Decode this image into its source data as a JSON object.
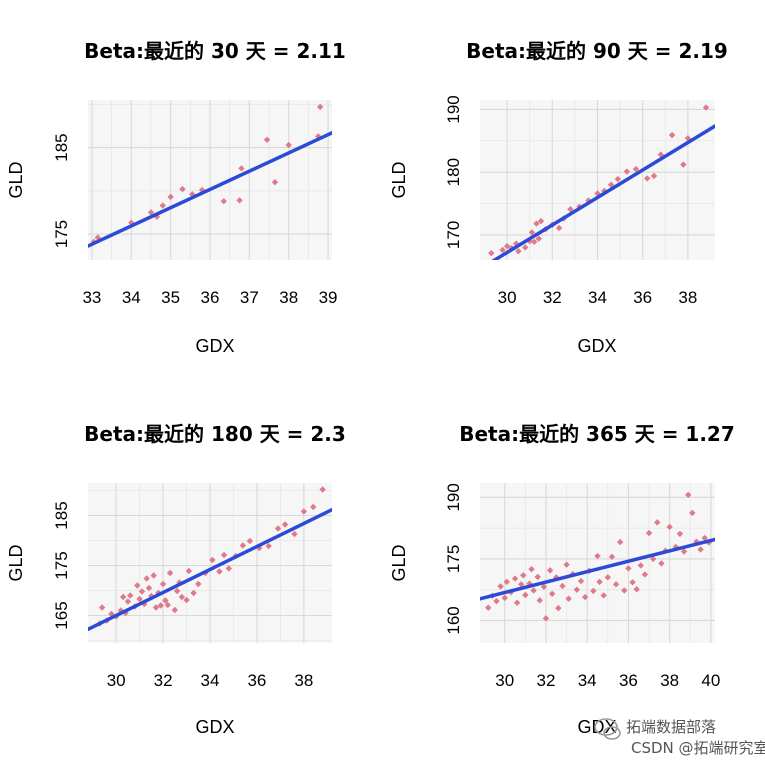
{
  "chart_data": [
    {
      "type": "scatter",
      "title": "Beta:最近的 30 天 = 2.11",
      "xlabel": "GDX",
      "ylabel": "GLD",
      "xlim": [
        32.9,
        39.1
      ],
      "ylim": [
        172.0,
        190.5
      ],
      "xticks": [
        33,
        34,
        35,
        36,
        37,
        38,
        39
      ],
      "yticks": [
        175,
        185
      ],
      "grid": true,
      "points": [
        [
          33.05,
          174.1
        ],
        [
          33.15,
          174.6
        ],
        [
          34.0,
          176.3
        ],
        [
          34.5,
          177.5
        ],
        [
          34.65,
          177.0
        ],
        [
          34.8,
          178.3
        ],
        [
          35.0,
          179.3
        ],
        [
          35.3,
          180.2
        ],
        [
          35.55,
          179.6
        ],
        [
          35.8,
          180.1
        ],
        [
          36.35,
          178.8
        ],
        [
          36.75,
          178.9
        ],
        [
          36.8,
          182.6
        ],
        [
          37.45,
          185.9
        ],
        [
          37.65,
          181.0
        ],
        [
          38.0,
          185.3
        ],
        [
          38.75,
          186.3
        ],
        [
          38.8,
          189.7
        ]
      ],
      "fit": {
        "slope": 2.11,
        "intercept": 104.2
      },
      "colors": {
        "points": "#e07a8b",
        "fit": "#2b4ad6",
        "panel": "#f5f6f5",
        "grid": "#d9d9d9"
      }
    },
    {
      "type": "scatter",
      "title": "Beta:最近的 90 天 = 2.19",
      "xlabel": "GDX",
      "ylabel": "GLD",
      "xlim": [
        28.8,
        39.2
      ],
      "ylim": [
        166.0,
        191.5
      ],
      "xticks": [
        30,
        32,
        34,
        36,
        38
      ],
      "yticks": [
        170,
        180,
        190
      ],
      "grid": true,
      "points": [
        [
          29.3,
          167.1
        ],
        [
          29.8,
          167.6
        ],
        [
          30.0,
          168.2
        ],
        [
          30.2,
          167.9
        ],
        [
          30.4,
          168.6
        ],
        [
          30.5,
          167.4
        ],
        [
          30.8,
          168.0
        ],
        [
          31.0,
          169.0
        ],
        [
          31.1,
          170.4
        ],
        [
          31.2,
          168.9
        ],
        [
          31.3,
          171.8
        ],
        [
          31.4,
          169.4
        ],
        [
          31.5,
          172.2
        ],
        [
          31.7,
          170.9
        ],
        [
          32.0,
          171.6
        ],
        [
          32.3,
          171.1
        ],
        [
          32.5,
          172.6
        ],
        [
          32.8,
          174.1
        ],
        [
          33.2,
          174.5
        ],
        [
          33.6,
          175.5
        ],
        [
          34.0,
          176.6
        ],
        [
          34.3,
          177.0
        ],
        [
          34.6,
          178.0
        ],
        [
          34.9,
          178.9
        ],
        [
          35.3,
          180.1
        ],
        [
          35.7,
          180.5
        ],
        [
          36.2,
          179.0
        ],
        [
          36.5,
          179.4
        ],
        [
          36.8,
          182.8
        ],
        [
          37.3,
          185.9
        ],
        [
          37.8,
          181.2
        ],
        [
          38.0,
          185.4
        ],
        [
          38.8,
          190.3
        ]
      ],
      "fit": {
        "slope": 2.19,
        "intercept": 101.5
      },
      "colors": {
        "points": "#e07a8b",
        "fit": "#2b4ad6",
        "panel": "#f5f6f5",
        "grid": "#d9d9d9"
      }
    },
    {
      "type": "scatter",
      "title": "Beta:最近的 180 天 = 2.3",
      "xlabel": "GDX",
      "ylabel": "GLD",
      "xlim": [
        28.8,
        39.2
      ],
      "ylim": [
        159.5,
        191.5
      ],
      "xticks": [
        30,
        32,
        34,
        36,
        38
      ],
      "yticks": [
        165,
        175,
        185
      ],
      "grid": true,
      "points": [
        [
          29.3,
          163.4
        ],
        [
          29.4,
          166.6
        ],
        [
          29.6,
          164.0
        ],
        [
          29.8,
          165.3
        ],
        [
          30.0,
          164.8
        ],
        [
          30.2,
          166.0
        ],
        [
          30.3,
          168.7
        ],
        [
          30.4,
          165.5
        ],
        [
          30.5,
          167.8
        ],
        [
          30.6,
          169.0
        ],
        [
          30.8,
          166.8
        ],
        [
          30.9,
          171.0
        ],
        [
          31.0,
          168.3
        ],
        [
          31.1,
          169.8
        ],
        [
          31.2,
          167.3
        ],
        [
          31.3,
          172.4
        ],
        [
          31.4,
          170.5
        ],
        [
          31.5,
          168.9
        ],
        [
          31.6,
          173.0
        ],
        [
          31.7,
          166.6
        ],
        [
          31.8,
          169.5
        ],
        [
          31.9,
          167.0
        ],
        [
          32.0,
          171.3
        ],
        [
          32.1,
          168.0
        ],
        [
          32.2,
          167.1
        ],
        [
          32.3,
          173.5
        ],
        [
          32.5,
          166.1
        ],
        [
          32.6,
          169.9
        ],
        [
          32.7,
          171.6
        ],
        [
          32.8,
          168.7
        ],
        [
          33.0,
          168.1
        ],
        [
          33.1,
          173.9
        ],
        [
          33.3,
          169.5
        ],
        [
          33.5,
          171.3
        ],
        [
          33.8,
          173.5
        ],
        [
          34.1,
          176.1
        ],
        [
          34.4,
          173.8
        ],
        [
          34.6,
          177.1
        ],
        [
          34.8,
          174.4
        ],
        [
          35.1,
          176.9
        ],
        [
          35.4,
          179.0
        ],
        [
          35.7,
          179.9
        ],
        [
          36.1,
          178.5
        ],
        [
          36.5,
          178.9
        ],
        [
          36.9,
          182.4
        ],
        [
          37.2,
          183.2
        ],
        [
          37.6,
          181.3
        ],
        [
          38.0,
          185.8
        ],
        [
          38.4,
          186.7
        ],
        [
          38.8,
          190.2
        ]
      ],
      "fit": {
        "slope": 2.3,
        "intercept": 96.0
      },
      "colors": {
        "points": "#e07a8b",
        "fit": "#2b4ad6",
        "panel": "#f5f6f5",
        "grid": "#d9d9d9"
      }
    },
    {
      "type": "scatter",
      "title": "Beta:最近的 365 天 = 1.27",
      "xlabel": "GDX",
      "ylabel": "GLD",
      "xlim": [
        28.8,
        40.2
      ],
      "ylim": [
        154.5,
        193.5
      ],
      "xticks": [
        30,
        32,
        34,
        36,
        38,
        40
      ],
      "yticks": [
        160,
        175,
        190
      ],
      "grid": true,
      "points": [
        [
          29.2,
          163.1
        ],
        [
          29.4,
          166.0
        ],
        [
          29.6,
          164.7
        ],
        [
          29.8,
          168.3
        ],
        [
          30.0,
          165.5
        ],
        [
          30.1,
          169.4
        ],
        [
          30.3,
          166.9
        ],
        [
          30.5,
          170.2
        ],
        [
          30.6,
          164.3
        ],
        [
          30.8,
          168.8
        ],
        [
          30.9,
          171.0
        ],
        [
          31.0,
          166.2
        ],
        [
          31.2,
          169.0
        ],
        [
          31.3,
          172.5
        ],
        [
          31.4,
          167.3
        ],
        [
          31.6,
          170.6
        ],
        [
          31.7,
          164.9
        ],
        [
          31.9,
          168.2
        ],
        [
          32.0,
          160.5
        ],
        [
          32.2,
          172.2
        ],
        [
          32.3,
          166.5
        ],
        [
          32.5,
          170.5
        ],
        [
          32.6,
          163.0
        ],
        [
          32.8,
          168.4
        ],
        [
          33.0,
          173.6
        ],
        [
          33.1,
          165.3
        ],
        [
          33.3,
          171.3
        ],
        [
          33.5,
          167.5
        ],
        [
          33.7,
          169.6
        ],
        [
          33.9,
          165.7
        ],
        [
          34.1,
          172.1
        ],
        [
          34.3,
          167.2
        ],
        [
          34.5,
          175.7
        ],
        [
          34.6,
          169.4
        ],
        [
          34.8,
          166.1
        ],
        [
          35.0,
          170.5
        ],
        [
          35.2,
          175.5
        ],
        [
          35.4,
          168.8
        ],
        [
          35.6,
          179.1
        ],
        [
          35.8,
          167.3
        ],
        [
          36.0,
          172.7
        ],
        [
          36.2,
          169.3
        ],
        [
          36.4,
          167.6
        ],
        [
          36.6,
          173.4
        ],
        [
          36.8,
          171.2
        ],
        [
          37.0,
          181.3
        ],
        [
          37.2,
          175.0
        ],
        [
          37.4,
          183.9
        ],
        [
          37.6,
          173.9
        ],
        [
          37.8,
          177.0
        ],
        [
          38.0,
          182.8
        ],
        [
          38.3,
          177.9
        ],
        [
          38.5,
          181.1
        ],
        [
          38.7,
          176.8
        ],
        [
          38.9,
          190.6
        ],
        [
          39.1,
          186.2
        ],
        [
          39.3,
          179.2
        ],
        [
          39.5,
          177.3
        ],
        [
          39.7,
          180.1
        ],
        [
          39.9,
          179.0
        ]
      ],
      "fit": {
        "slope": 1.27,
        "intercept": 128.7
      },
      "colors": {
        "points": "#e07a8b",
        "fit": "#2b4ad6",
        "panel": "#f5f6f5",
        "grid": "#d9d9d9"
      }
    }
  ],
  "watermark": {
    "brand": "拓端数据部落",
    "source": "CSDN @拓端研究室"
  }
}
